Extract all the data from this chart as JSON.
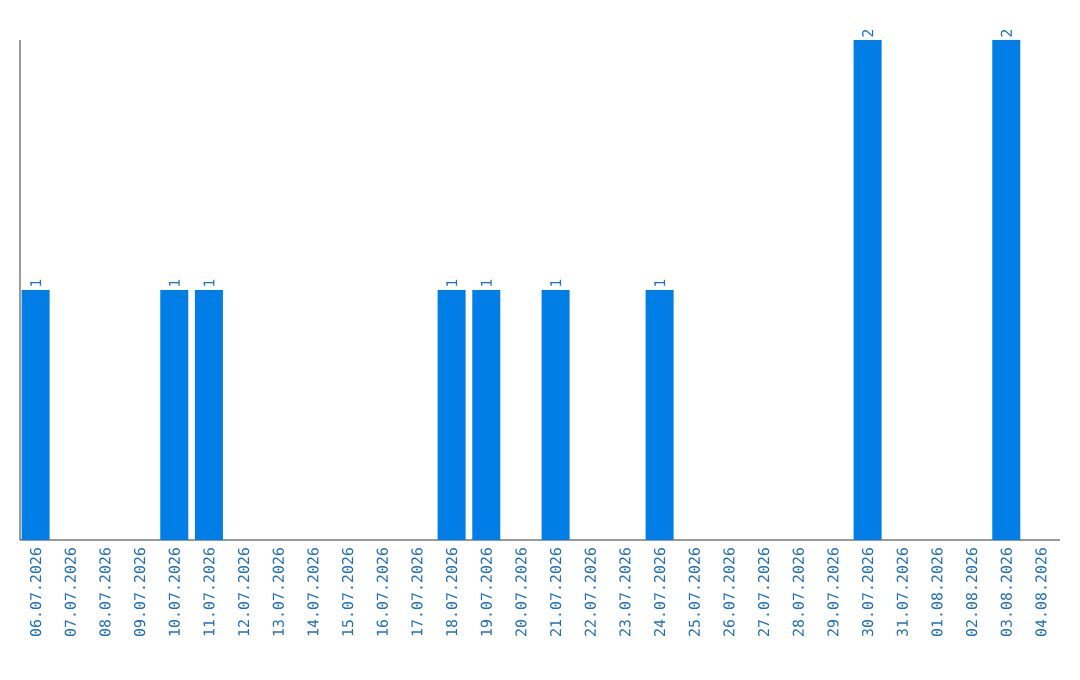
{
  "chart_data": {
    "type": "bar",
    "categories": [
      "06.07.2026",
      "07.07.2026",
      "08.07.2026",
      "09.07.2026",
      "10.07.2026",
      "11.07.2026",
      "12.07.2026",
      "13.07.2026",
      "14.07.2026",
      "15.07.2026",
      "16.07.2026",
      "17.07.2026",
      "18.07.2026",
      "19.07.2026",
      "20.07.2026",
      "21.07.2026",
      "22.07.2026",
      "23.07.2026",
      "24.07.2026",
      "25.07.2026",
      "26.07.2026",
      "27.07.2026",
      "28.07.2026",
      "29.07.2026",
      "30.07.2026",
      "31.07.2026",
      "01.08.2026",
      "02.08.2026",
      "03.08.2026",
      "04.08.2026"
    ],
    "values": [
      1,
      0,
      0,
      0,
      1,
      1,
      0,
      0,
      0,
      0,
      0,
      0,
      1,
      1,
      0,
      1,
      0,
      0,
      1,
      0,
      0,
      0,
      0,
      0,
      2,
      0,
      0,
      0,
      2,
      0
    ],
    "value_labels": [
      "1",
      null,
      null,
      null,
      "1",
      "1",
      null,
      null,
      null,
      null,
      null,
      null,
      "1",
      "1",
      null,
      "1",
      null,
      null,
      "1",
      null,
      null,
      null,
      null,
      null,
      "2",
      null,
      null,
      null,
      "2",
      null
    ],
    "color": "#007ee5",
    "tick_labels": "x",
    "grid": false
  }
}
